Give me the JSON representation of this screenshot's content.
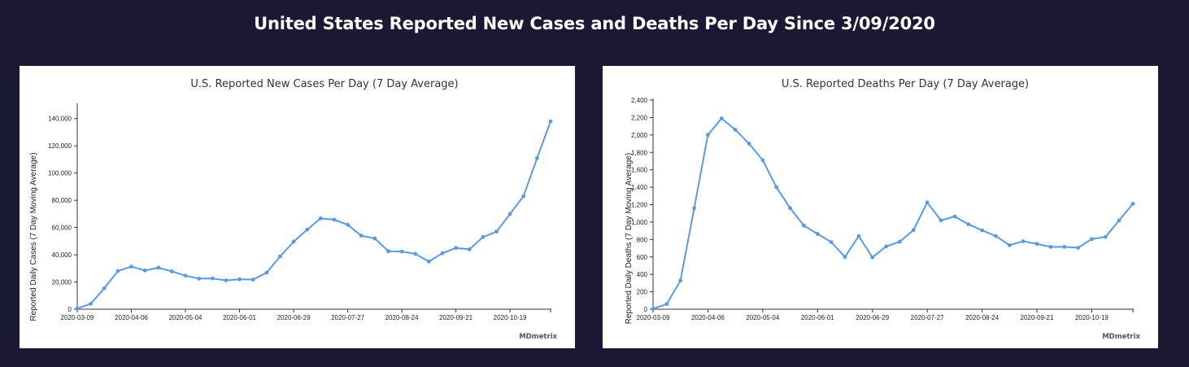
{
  "page": {
    "title": "United States Reported New Cases and Deaths Per Day Since 3/09/2020"
  },
  "colors": {
    "background": "#1a1833",
    "panel": "#ffffff",
    "series": "#5b9ae0"
  },
  "charts": [
    {
      "title": "U.S. Reported New Cases Per Day (7 Day Average)",
      "ylabel": "Reported Daily Cases (7 Day Moving Average)",
      "brand": "MDmetrix",
      "yticks": [
        "0",
        "20,000",
        "40,000",
        "60,000",
        "80,000",
        "100,000",
        "120,000",
        "140,000"
      ],
      "xticks": [
        "2020-03-09",
        "2020-04-06",
        "2020-05-04",
        "2020-06-01",
        "2020-06-29",
        "2020-07-27",
        "2020-08-24",
        "2020-09-21",
        "2020-10-19"
      ]
    },
    {
      "title": "U.S. Reported Deaths Per Day (7 Day Average)",
      "ylabel": "Reported Daily Deaths (7 Day Moving Average)",
      "brand": "MDmetrix",
      "yticks": [
        "0",
        "200",
        "400",
        "600",
        "800",
        "1,000",
        "1,200",
        "1,400",
        "1,600",
        "1,800",
        "2,000",
        "2,200",
        "2,400"
      ],
      "xticks": [
        "2020-03-09",
        "2020-04-06",
        "2020-05-04",
        "2020-06-01",
        "2020-06-29",
        "2020-07-27",
        "2020-08-24",
        "2020-09-21",
        "2020-10-19"
      ]
    }
  ],
  "chart_data": [
    {
      "type": "line",
      "title": "U.S. Reported New Cases Per Day (7 Day Average)",
      "xlabel": "",
      "ylabel": "Reported Daily Cases (7 Day Moving Average)",
      "ylim": [
        0,
        150000
      ],
      "x": [
        "2020-03-09",
        "2020-03-16",
        "2020-03-23",
        "2020-03-30",
        "2020-04-06",
        "2020-04-13",
        "2020-04-20",
        "2020-04-27",
        "2020-05-04",
        "2020-05-11",
        "2020-05-18",
        "2020-05-25",
        "2020-06-01",
        "2020-06-08",
        "2020-06-15",
        "2020-06-22",
        "2020-06-29",
        "2020-07-06",
        "2020-07-13",
        "2020-07-20",
        "2020-07-27",
        "2020-08-03",
        "2020-08-10",
        "2020-08-17",
        "2020-08-24",
        "2020-08-31",
        "2020-09-07",
        "2020-09-14",
        "2020-09-21",
        "2020-09-28",
        "2020-10-05",
        "2020-10-12",
        "2020-10-19",
        "2020-10-26",
        "2020-11-02",
        "2020-11-09"
      ],
      "values": [
        500,
        4000,
        15500,
        28000,
        31300,
        28500,
        30500,
        27800,
        24600,
        22500,
        22600,
        21200,
        22000,
        21800,
        26800,
        38800,
        49600,
        58500,
        66700,
        65800,
        62000,
        54000,
        52000,
        42600,
        42400,
        40700,
        35100,
        41100,
        45000,
        44000,
        53000,
        57000,
        70000,
        83000,
        111000,
        138000
      ],
      "grid": false,
      "legend": "none"
    },
    {
      "type": "line",
      "title": "U.S. Reported Deaths Per Day (7 Day Average)",
      "xlabel": "",
      "ylabel": "Reported Daily Deaths (7 Day Moving Average)",
      "ylim": [
        0,
        2400
      ],
      "x": [
        "2020-03-09",
        "2020-03-16",
        "2020-03-23",
        "2020-03-30",
        "2020-04-06",
        "2020-04-13",
        "2020-04-20",
        "2020-04-27",
        "2020-05-04",
        "2020-05-11",
        "2020-05-18",
        "2020-05-25",
        "2020-06-01",
        "2020-06-08",
        "2020-06-15",
        "2020-06-22",
        "2020-06-29",
        "2020-07-06",
        "2020-07-13",
        "2020-07-20",
        "2020-07-27",
        "2020-08-03",
        "2020-08-10",
        "2020-08-17",
        "2020-08-24",
        "2020-08-31",
        "2020-09-07",
        "2020-09-14",
        "2020-09-21",
        "2020-09-28",
        "2020-10-05",
        "2020-10-12",
        "2020-10-19",
        "2020-10-26",
        "2020-11-02",
        "2020-11-09"
      ],
      "values": [
        5,
        60,
        330,
        1160,
        2000,
        2190,
        2060,
        1900,
        1710,
        1400,
        1160,
        960,
        865,
        770,
        600,
        840,
        595,
        720,
        775,
        910,
        1225,
        1020,
        1065,
        975,
        905,
        840,
        735,
        780,
        750,
        715,
        715,
        705,
        805,
        830,
        1020,
        1210
      ],
      "grid": false,
      "legend": "none"
    }
  ]
}
